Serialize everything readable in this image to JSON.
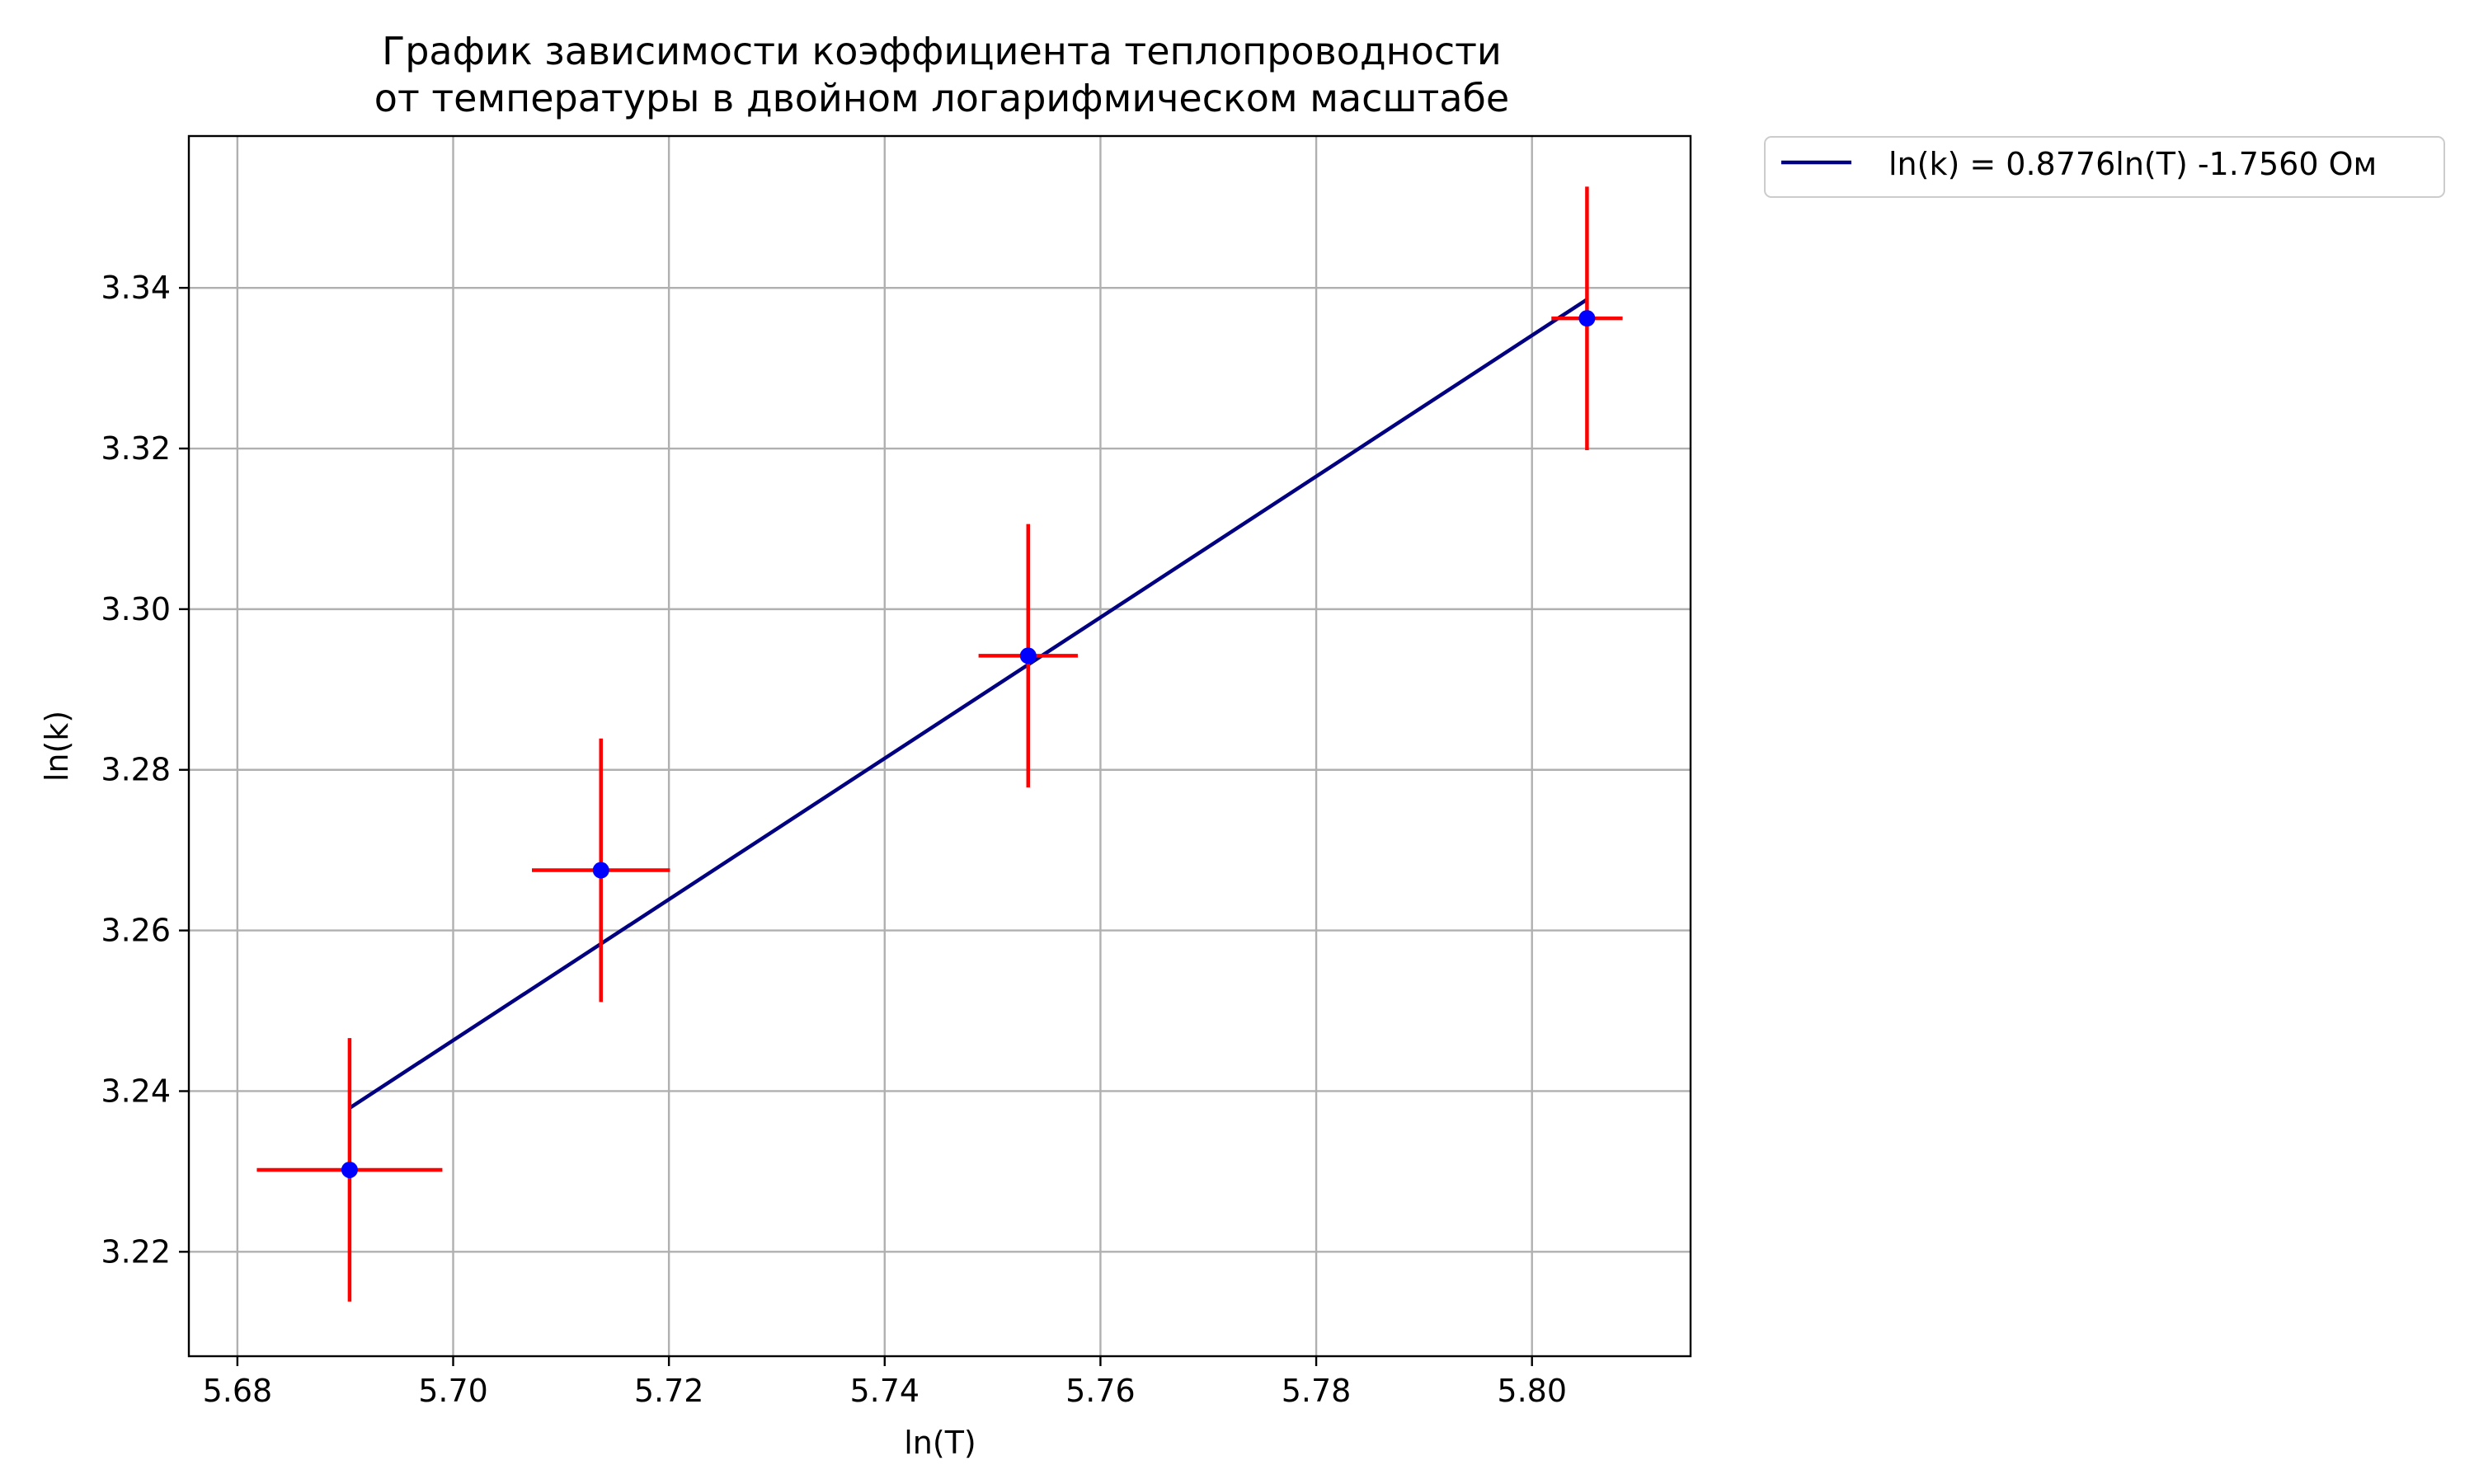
{
  "chart_data": {
    "type": "scatter",
    "title_lines": [
      "График зависимости коэффициента теплопроводности",
      "от температуры в двойном логарифмическом масштабе"
    ],
    "xlabel": "ln(T)",
    "ylabel": "ln(k)",
    "xlim": [
      5.6755,
      5.8147
    ],
    "ylim": [
      3.207,
      3.3589
    ],
    "xticks": [
      5.68,
      5.7,
      5.72,
      5.74,
      5.76,
      5.78,
      5.8
    ],
    "xtick_labels": [
      "5.68",
      "5.70",
      "5.72",
      "5.74",
      "5.76",
      "5.78",
      "5.80"
    ],
    "yticks": [
      3.22,
      3.24,
      3.26,
      3.28,
      3.3,
      3.32,
      3.34
    ],
    "ytick_labels": [
      "3.22",
      "3.24",
      "3.26",
      "3.28",
      "3.30",
      "3.32",
      "3.34"
    ],
    "grid": true,
    "legend_position": "outside-top-right",
    "points": {
      "x": [
        5.6904,
        5.7137,
        5.7533,
        5.8051
      ],
      "y": [
        3.2302,
        3.2675,
        3.2942,
        3.3362
      ],
      "xerr": [
        0.0086,
        0.0064,
        0.0046,
        0.0033
      ],
      "yerr": [
        0.0164,
        0.0164,
        0.0164,
        0.0164
      ],
      "marker_color": "#0000ff",
      "error_color": "#ff0000"
    },
    "fit_line": {
      "label": "ln(k) = 0.8776ln(T) -1.7560 Ом",
      "slope": 0.8776,
      "intercept": -1.756,
      "x_range": [
        5.6904,
        5.8051
      ],
      "color": "#000080"
    }
  }
}
